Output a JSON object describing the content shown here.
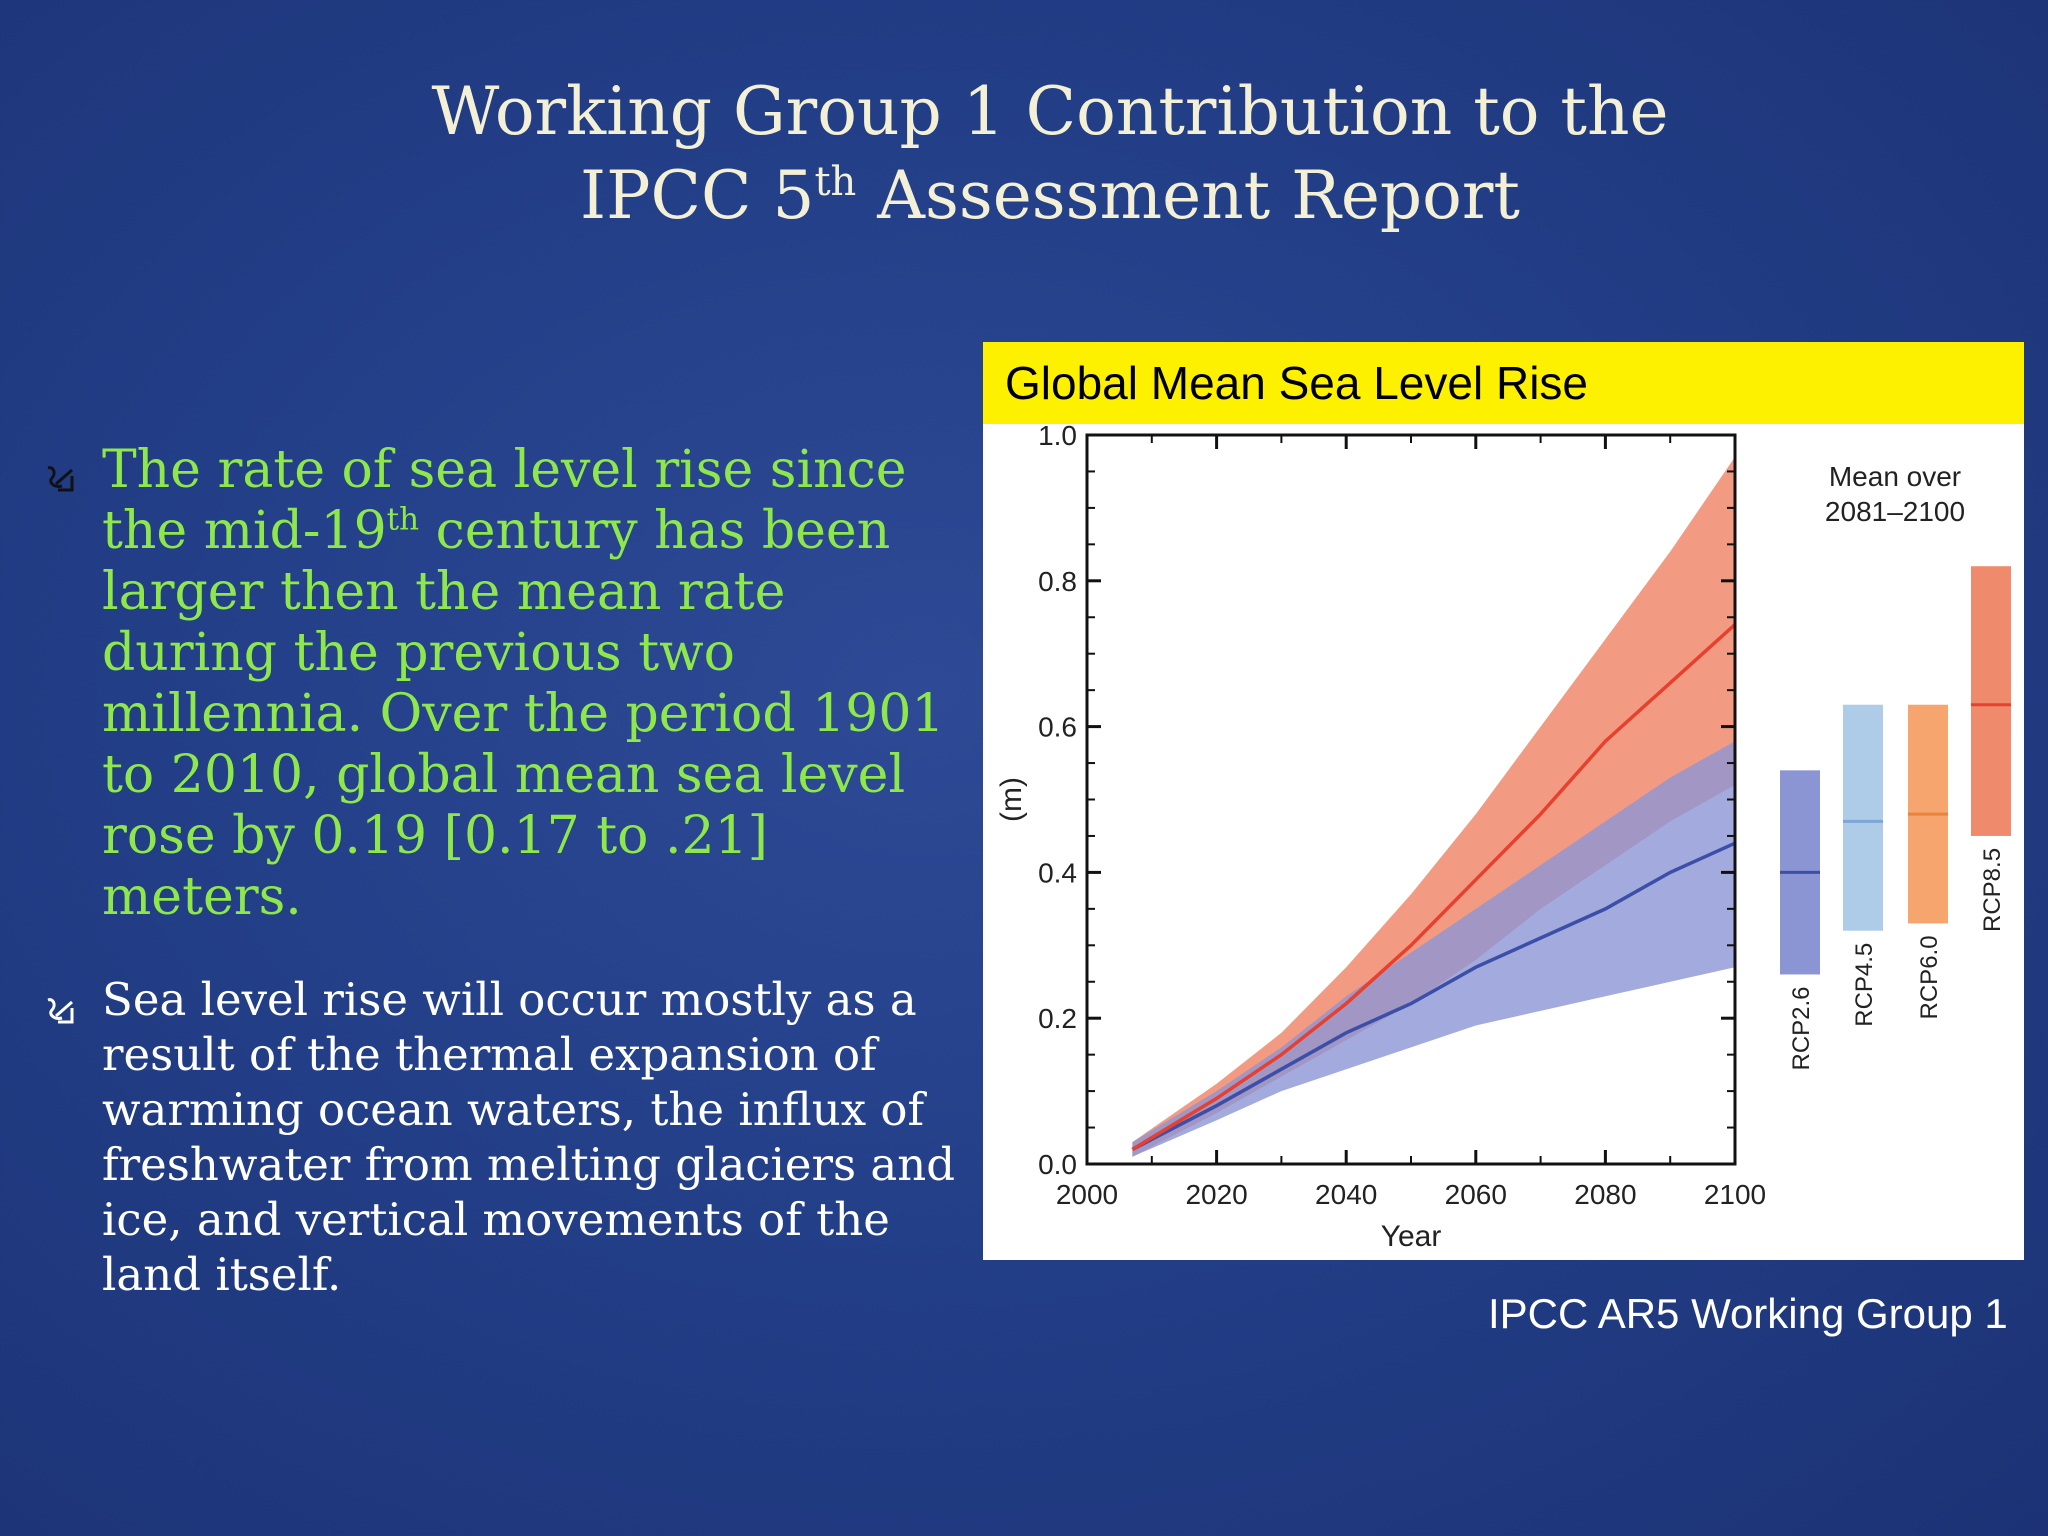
{
  "slide": {
    "title_line1": "Working Group 1 Contribution to the",
    "title_line2_pre": "IPCC 5",
    "title_line2_sup": "th",
    "title_line2_post": " Assessment Report",
    "bullet1": {
      "pre": "The rate of sea level rise since the mid-19",
      "sup": "th",
      "post": " century has been larger then the mean rate during the previous two millennia. Over the period 1901 to 2010, global mean sea level rose by 0.19 [0.17 to .21] meters."
    },
    "bullet2": "Sea level rise will occur mostly as a result of the thermal expansion of warming ocean waters, the influx of freshwater from melting glaciers and ice, and vertical movements of the land itself.",
    "bullet_icon": "wavy-arrow-icon",
    "caption": "IPCC AR5 Working Group 1"
  },
  "colors": {
    "background": "#233f88",
    "title_text": "#f4f0d6",
    "bullet1_text": "#8ee84a",
    "bullet2_text": "#ffffff",
    "chart_title_bg": "#fdf100",
    "rcp85": "#e8402e",
    "rcp85_band": "#f08a6c",
    "rcp26": "#3b4fa8",
    "rcp26_band": "#8c95d4",
    "rcp45_box": "#aecbe8",
    "rcp60_box": "#f7a56e"
  },
  "chart_data": {
    "type": "area",
    "title": "Global Mean Sea Level Rise",
    "xlabel": "Year",
    "ylabel": "(m)",
    "xlim": [
      2000,
      2100
    ],
    "ylim": [
      0.0,
      1.0
    ],
    "xticks": [
      "2000",
      "2020",
      "2040",
      "2060",
      "2080",
      "2100"
    ],
    "yticks": [
      "0.0",
      "0.2",
      "0.4",
      "0.6",
      "0.8",
      "1.0"
    ],
    "x": [
      2007,
      2020,
      2030,
      2040,
      2050,
      2060,
      2070,
      2080,
      2090,
      2100
    ],
    "series": [
      {
        "name": "RCP8.5",
        "mean": [
          0.02,
          0.09,
          0.15,
          0.22,
          0.3,
          0.39,
          0.48,
          0.58,
          0.66,
          0.74
        ],
        "low": [
          0.01,
          0.07,
          0.12,
          0.17,
          0.22,
          0.28,
          0.35,
          0.41,
          0.47,
          0.52
        ],
        "high": [
          0.03,
          0.11,
          0.18,
          0.27,
          0.37,
          0.48,
          0.6,
          0.72,
          0.84,
          0.97
        ]
      },
      {
        "name": "RCP2.6",
        "mean": [
          0.02,
          0.08,
          0.13,
          0.18,
          0.22,
          0.27,
          0.31,
          0.35,
          0.4,
          0.44
        ],
        "low": [
          0.01,
          0.06,
          0.1,
          0.13,
          0.16,
          0.19,
          0.21,
          0.23,
          0.25,
          0.27
        ],
        "high": [
          0.03,
          0.1,
          0.16,
          0.23,
          0.29,
          0.35,
          0.41,
          0.47,
          0.53,
          0.58
        ]
      }
    ],
    "side_panel": {
      "title_line1": "Mean over",
      "title_line2": "2081–2100",
      "boxes": [
        {
          "name": "RCP2.6",
          "low": 0.26,
          "mean": 0.4,
          "high": 0.54
        },
        {
          "name": "RCP4.5",
          "low": 0.32,
          "mean": 0.47,
          "high": 0.63
        },
        {
          "name": "RCP6.0",
          "low": 0.33,
          "mean": 0.48,
          "high": 0.63
        },
        {
          "name": "RCP8.5",
          "low": 0.45,
          "mean": 0.63,
          "high": 0.82
        }
      ]
    }
  }
}
